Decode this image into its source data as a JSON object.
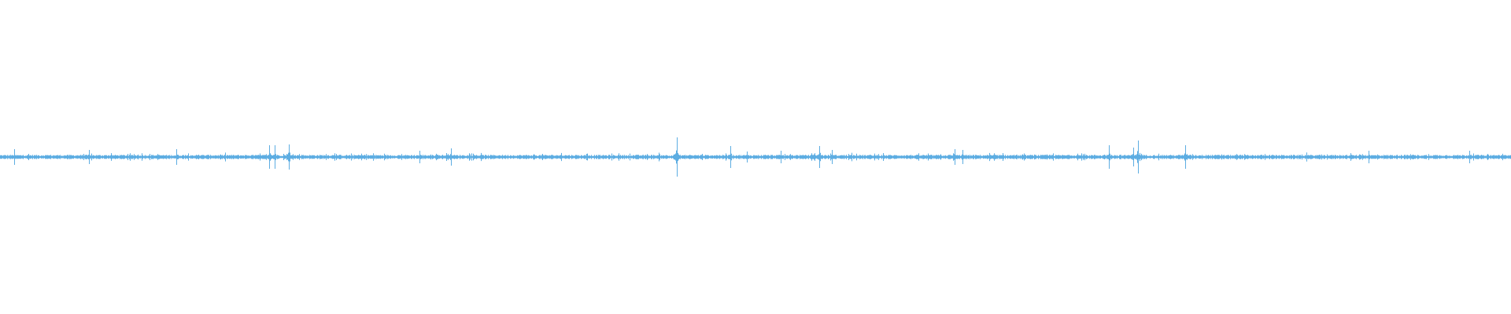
{
  "waveform": {
    "color": "#5dade2",
    "background": "#ffffff"
  }
}
